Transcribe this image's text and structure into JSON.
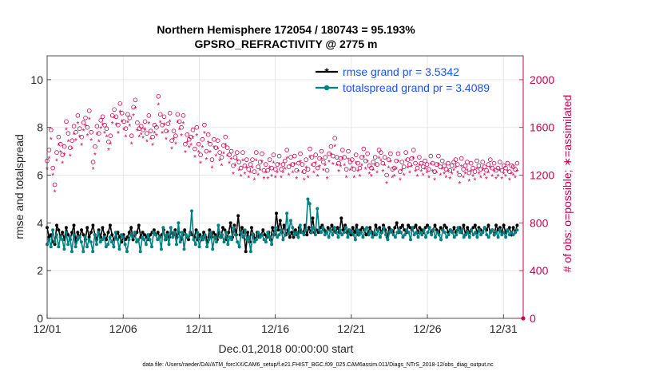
{
  "chart_data": {
    "type": "line",
    "title_line1": "Northern Hemisphere 172054 / 180743 = 95.193%",
    "title_line2": "GPSRO_REFRACTIVITY @ 2775 m",
    "xlabel": "Dec.01,2018 00:00:00 start",
    "ylabel_left": "rmse and totalspread",
    "ylabel_right": "# of obs: o=possible; ∗=assimilated",
    "footnote": "data file: /Users/raeder/DAI/ATM_forcXX/CAM6_setup/f.e21.FHIST_BGC.f09_025.CAM6assim.011/Diags_NTrS_2018-12/obs_diag_output.nc",
    "x_ticks": [
      "12/01",
      "12/06",
      "12/11",
      "12/16",
      "12/21",
      "12/26",
      "12/31"
    ],
    "x_tick_days": [
      0,
      5,
      10,
      15,
      20,
      25,
      30
    ],
    "xlim": [
      0,
      31.3
    ],
    "ylim_left": [
      0,
      11
    ],
    "y_ticks_left": [
      "0",
      "2",
      "4",
      "6",
      "8",
      "10"
    ],
    "ylim_right": [
      0,
      2200
    ],
    "y_ticks_right": [
      "0",
      "400",
      "800",
      "1200",
      "1600",
      "2000"
    ],
    "legend": [
      {
        "label": "rmse grand pr = 3.5342",
        "color": "#000000"
      },
      {
        "label": "totalspread grand pr = 3.4089",
        "color": "#008080"
      }
    ],
    "series": [
      {
        "name": "rmse",
        "axis": "left",
        "color": "#000000",
        "values": [
          3.8,
          3.4,
          3.5,
          3.2,
          3.1,
          3.9,
          3.7,
          3.4,
          3.6,
          3.3,
          3.8,
          3.5,
          3.3,
          3.6,
          3.9,
          3.2,
          3.6,
          3.4,
          3.7,
          3.5,
          3.3,
          3.8,
          3.4,
          3.6,
          3.9,
          3.5,
          3.3,
          3.7,
          3.4,
          3.8,
          3.5,
          3.3,
          3.6,
          3.9,
          3.5,
          3.3,
          3.4,
          3.6,
          3.4,
          3.2,
          3.5,
          3.3,
          3.4,
          3.6,
          3.8,
          3.3,
          3.5,
          3.6,
          3.9,
          3.4,
          3.6,
          3.5,
          3.4,
          3.3,
          3.5,
          3.6,
          3.7,
          3.5,
          3.6,
          3.4,
          3.5,
          3.7,
          3.3,
          3.6,
          3.4,
          3.6,
          3.5,
          3.7,
          3.4,
          3.6,
          3.3,
          3.5,
          3.7,
          3.4,
          3.3,
          3.6,
          3.5,
          3.4,
          3.7,
          3.3,
          3.5,
          3.3,
          3.6,
          3.4,
          3.2,
          3.7,
          3.4,
          3.6,
          3.5,
          3.3,
          3.6,
          3.4,
          3.8,
          3.7,
          3.3,
          3.6,
          4.0,
          3.4,
          3.9,
          3.5,
          4.3,
          3.5,
          3.8,
          3.6,
          2.8,
          3.6,
          3.2,
          3.8,
          3.5,
          3.3,
          3.6,
          3.4,
          3.5,
          3.7,
          3.5,
          3.4,
          3.6,
          3.3,
          3.8,
          3.5,
          4.4,
          3.7,
          4.1,
          3.6,
          3.9,
          3.5,
          3.7,
          3.4,
          3.6,
          3.4,
          3.7,
          3.5,
          3.8,
          3.6,
          3.6,
          3.9,
          3.5,
          3.8,
          3.6,
          4.2,
          3.6,
          3.7,
          3.6,
          3.8,
          3.9,
          3.7,
          3.6,
          3.8,
          3.7,
          3.9,
          3.7,
          3.6,
          3.8,
          3.6,
          4.2,
          3.7,
          3.9,
          3.6,
          3.7,
          3.5,
          3.8,
          3.6,
          3.9,
          3.5,
          3.7,
          3.8,
          3.7,
          3.5,
          3.6,
          3.8,
          3.6,
          3.5,
          3.9,
          3.7,
          3.8,
          3.6,
          3.9,
          3.7,
          3.4,
          3.8,
          3.7,
          3.6,
          3.8,
          4.0,
          3.6,
          3.8,
          3.9,
          3.7,
          3.6,
          3.9,
          3.8,
          3.7,
          3.8,
          3.9,
          3.6,
          3.8,
          3.7,
          3.6,
          3.8,
          3.9,
          3.8,
          3.6,
          3.7,
          3.9,
          3.7,
          3.6,
          3.8,
          3.7,
          3.9,
          3.8,
          3.6,
          3.7,
          3.6,
          3.8,
          3.6,
          3.7,
          3.8,
          3.6,
          3.9,
          3.5,
          3.8,
          3.6,
          3.7,
          3.8,
          3.9,
          3.6,
          3.8,
          3.7,
          3.6,
          3.8,
          3.7,
          3.9,
          3.6,
          3.7,
          3.5,
          3.9,
          3.7,
          3.8,
          3.6,
          3.9,
          3.6,
          3.7,
          3.8,
          3.5,
          3.8,
          3.6,
          3.9
        ]
      },
      {
        "name": "totalspread",
        "axis": "left",
        "color": "#008080",
        "values": [
          3.1,
          3.3,
          3.0,
          3.7,
          3.2,
          3.5,
          3.0,
          3.4,
          3.3,
          2.9,
          3.6,
          3.1,
          3.4,
          2.8,
          3.5,
          3.0,
          3.3,
          3.4,
          3.2,
          2.8,
          3.4,
          3.0,
          3.3,
          3.2,
          2.8,
          3.5,
          3.1,
          3.6,
          3.2,
          3.3,
          3.4,
          3.0,
          3.1,
          3.4,
          3.2,
          3.0,
          3.6,
          3.3,
          2.9,
          3.5,
          3.4,
          3.1,
          2.8,
          3.3,
          3.5,
          3.4,
          3.6,
          3.2,
          3.3,
          2.8,
          3.4,
          3.3,
          3.1,
          3.5,
          3.3,
          3.0,
          3.6,
          3.5,
          3.3,
          3.4,
          2.9,
          3.8,
          3.3,
          3.5,
          3.1,
          3.8,
          3.4,
          3.6,
          3.1,
          4.0,
          3.2,
          3.6,
          2.9,
          3.5,
          3.4,
          3.5,
          4.5,
          3.3,
          3.1,
          3.6,
          3.0,
          3.4,
          3.3,
          3.5,
          3.0,
          3.3,
          3.6,
          2.9,
          3.4,
          3.2,
          3.9,
          3.4,
          3.5,
          3.2,
          3.6,
          3.1,
          3.4,
          3.3,
          3.8,
          3.5,
          3.2,
          3.0,
          3.6,
          3.4,
          3.7,
          3.3,
          3.4,
          2.8,
          3.5,
          3.2,
          3.3,
          3.6,
          3.4,
          3.5,
          3.3,
          3.2,
          3.6,
          3.4,
          3.1,
          3.5,
          3.8,
          3.4,
          3.5,
          3.7,
          3.3,
          3.5,
          4.4,
          3.6,
          4.1,
          3.8,
          3.5,
          3.6,
          3.4,
          3.9,
          3.6,
          3.5,
          3.7,
          5.0,
          4.8,
          3.6,
          3.8,
          3.5,
          4.6,
          3.7,
          3.6,
          3.8,
          3.5,
          3.6,
          3.4,
          3.7,
          3.5,
          3.8,
          3.6,
          3.4,
          3.7,
          3.5,
          3.6,
          3.8,
          3.4,
          3.7,
          3.6,
          3.5,
          3.3,
          3.7,
          3.5,
          3.6,
          3.4,
          3.7,
          3.8,
          3.5,
          3.6,
          3.4,
          3.6,
          3.5,
          3.7,
          3.4,
          3.6,
          3.8,
          3.5,
          3.3,
          3.6,
          3.7,
          3.5,
          3.4,
          3.6,
          3.7,
          3.6,
          3.4,
          3.5,
          3.7,
          3.6,
          3.3,
          3.8,
          3.5,
          3.6,
          3.4,
          3.6,
          3.5,
          3.7,
          3.4,
          3.6,
          3.8,
          3.5,
          3.7,
          3.4,
          3.6,
          3.5,
          3.3,
          3.7,
          3.6,
          3.4,
          3.5,
          3.7,
          3.6,
          3.4,
          3.5,
          3.8,
          3.6,
          3.7,
          3.4,
          3.5,
          3.6,
          3.4,
          3.7,
          3.5,
          3.6,
          3.4,
          3.7,
          3.5,
          3.6,
          3.8,
          3.5,
          3.4,
          3.6,
          3.7,
          3.5,
          3.6,
          3.4,
          3.7,
          3.5,
          3.6,
          3.4,
          3.7,
          3.5,
          3.6,
          3.5,
          3.6,
          3.7
        ]
      },
      {
        "name": "obs possible",
        "axis": "right",
        "color": "#cc0052",
        "marker": "o",
        "values": [
          1320,
          1410,
          1580,
          1260,
          1120,
          1390,
          1520,
          1460,
          1370,
          1440,
          1650,
          1550,
          1430,
          1490,
          1610,
          1560,
          1700,
          1590,
          1520,
          1640,
          1680,
          1600,
          1740,
          1560,
          1310,
          1440,
          1610,
          1550,
          1660,
          1690,
          1620,
          1590,
          1480,
          1530,
          1700,
          1750,
          1690,
          1620,
          1800,
          1720,
          1650,
          1590,
          1710,
          1680,
          1530,
          1770,
          1830,
          1640,
          1590,
          1610,
          1580,
          1650,
          1550,
          1700,
          1570,
          1520,
          1620,
          1600,
          1860,
          1710,
          1620,
          1690,
          1570,
          1630,
          1720,
          1490,
          1570,
          1530,
          1710,
          1650,
          1600,
          1700,
          1460,
          1540,
          1500,
          1520,
          1580,
          1420,
          1600,
          1460,
          1370,
          1500,
          1620,
          1400,
          1540,
          1460,
          1330,
          1500,
          1430,
          1490,
          1390,
          1350,
          1450,
          1520,
          1430,
          1370,
          1400,
          1280,
          1350,
          1390,
          1310,
          1260,
          1390,
          1280,
          1330,
          1250,
          1290,
          1330,
          1230,
          1390,
          1270,
          1310,
          1380,
          1240,
          1290,
          1240,
          1330,
          1260,
          1370,
          1250,
          1290,
          1360,
          1250,
          1290,
          1320,
          1410,
          1270,
          1350,
          1290,
          1360,
          1240,
          1300,
          1380,
          1290,
          1230,
          1330,
          1250,
          1420,
          1350,
          1290,
          1370,
          1260,
          1340,
          1400,
          1310,
          1350,
          1240,
          1380,
          1440,
          1360,
          1510,
          1350,
          1300,
          1340,
          1410,
          1350,
          1250,
          1400,
          1310,
          1330,
          1250,
          1370,
          1300,
          1260,
          1350,
          1420,
          1320,
          1380,
          1280,
          1260,
          1310,
          1350,
          1290,
          1410,
          1390,
          1300,
          1350,
          1200,
          1330,
          1380,
          1250,
          1260,
          1320,
          1380,
          1230,
          1310,
          1270,
          1390,
          1330,
          1290,
          1340,
          1410,
          1300,
          1260,
          1350,
          1300,
          1270,
          1320,
          1290,
          1250,
          1360,
          1300,
          1230,
          1290,
          1360,
          1270,
          1320,
          1280,
          1250,
          1300,
          1240,
          1280,
          1310,
          1330,
          1290,
          1200,
          1340,
          1250,
          1280,
          1310,
          1220,
          1300,
          1260,
          1230,
          1320,
          1280,
          1250,
          1310,
          1270,
          1240,
          1290,
          1330,
          1260,
          1300,
          1240,
          1260,
          1310,
          1240,
          1280,
          1260,
          1300,
          1230,
          1280,
          1270,
          1250,
          1300
        ]
      },
      {
        "name": "obs assimilated",
        "axis": "right",
        "color": "#cc0052",
        "marker": "*",
        "values": [
          1250,
          1340,
          1500,
          1200,
          1060,
          1320,
          1450,
          1390,
          1300,
          1370,
          1580,
          1480,
          1360,
          1420,
          1540,
          1490,
          1630,
          1520,
          1450,
          1570,
          1610,
          1530,
          1670,
          1490,
          1250,
          1370,
          1540,
          1480,
          1590,
          1620,
          1550,
          1520,
          1410,
          1460,
          1630,
          1680,
          1620,
          1550,
          1730,
          1650,
          1580,
          1520,
          1640,
          1610,
          1460,
          1700,
          1760,
          1570,
          1520,
          1540,
          1510,
          1580,
          1480,
          1630,
          1500,
          1450,
          1550,
          1530,
          1790,
          1640,
          1550,
          1620,
          1500,
          1560,
          1650,
          1420,
          1500,
          1460,
          1640,
          1580,
          1530,
          1630,
          1390,
          1470,
          1430,
          1450,
          1510,
          1350,
          1530,
          1390,
          1300,
          1430,
          1550,
          1330,
          1470,
          1390,
          1260,
          1430,
          1360,
          1420,
          1320,
          1280,
          1380,
          1450,
          1360,
          1300,
          1330,
          1210,
          1280,
          1320,
          1240,
          1190,
          1320,
          1210,
          1260,
          1180,
          1220,
          1260,
          1160,
          1320,
          1200,
          1240,
          1310,
          1170,
          1220,
          1170,
          1260,
          1190,
          1300,
          1180,
          1220,
          1290,
          1180,
          1220,
          1250,
          1340,
          1200,
          1280,
          1220,
          1290,
          1170,
          1230,
          1310,
          1220,
          1160,
          1260,
          1180,
          1350,
          1280,
          1220,
          1300,
          1190,
          1270,
          1330,
          1240,
          1280,
          1170,
          1310,
          1370,
          1290,
          1440,
          1280,
          1230,
          1270,
          1340,
          1280,
          1180,
          1330,
          1240,
          1260,
          1180,
          1300,
          1230,
          1190,
          1280,
          1350,
          1250,
          1310,
          1210,
          1190,
          1240,
          1280,
          1220,
          1340,
          1320,
          1230,
          1280,
          1130,
          1260,
          1310,
          1180,
          1190,
          1250,
          1310,
          1160,
          1240,
          1200,
          1320,
          1260,
          1220,
          1270,
          1340,
          1230,
          1190,
          1280,
          1230,
          1200,
          1250,
          1220,
          1180,
          1290,
          1230,
          1160,
          1220,
          1290,
          1200,
          1250,
          1210,
          1180,
          1230,
          1170,
          1210,
          1240,
          1260,
          1220,
          1130,
          1270,
          1180,
          1210,
          1240,
          1150,
          1230,
          1190,
          1160,
          1250,
          1210,
          1180,
          1240,
          1200,
          1170,
          1220,
          1260,
          1190,
          1230,
          1170,
          1190,
          1240,
          1170,
          1210,
          1190,
          1230,
          1160,
          1210,
          1200,
          1180,
          1230
        ]
      }
    ]
  }
}
